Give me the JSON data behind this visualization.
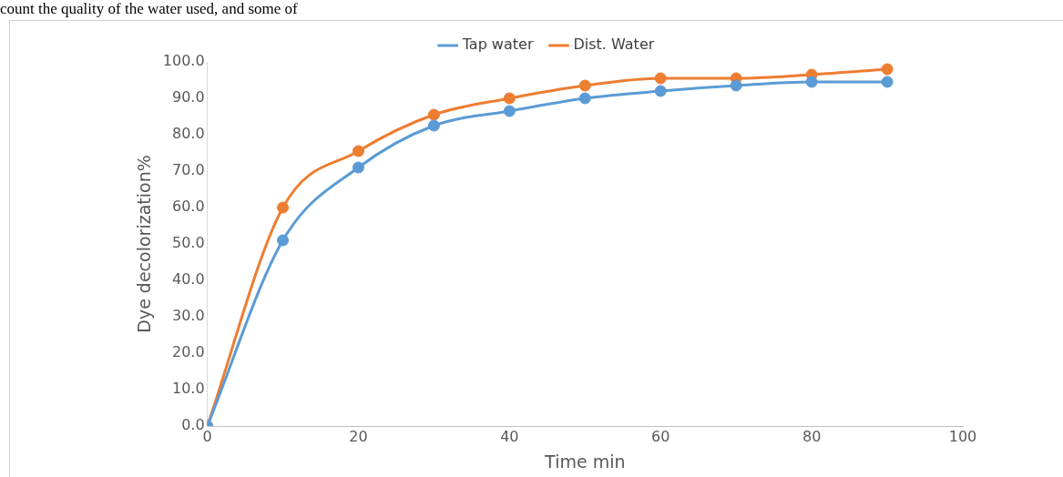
{
  "chart_data": {
    "type": "line",
    "xlabel": "Time min",
    "ylabel": "Dye decolorization%",
    "annotations": [
      "count the quality of the water used, and some of"
    ],
    "x": [
      0,
      10,
      20,
      30,
      40,
      50,
      60,
      70,
      80,
      90
    ],
    "series": [
      {
        "name": "Tap water",
        "color": "#5b9bd5",
        "values": [
          0,
          51.0,
          71.0,
          82.5,
          86.5,
          90.0,
          92.0,
          93.5,
          94.5,
          94.5
        ]
      },
      {
        "name": "Dist. Water",
        "color": "#ed7d31",
        "values": [
          0,
          60.0,
          75.5,
          85.5,
          90.0,
          93.5,
          95.5,
          95.5,
          96.5,
          98.0
        ]
      }
    ],
    "xlim": [
      0,
      100
    ],
    "xticks": [
      0,
      20,
      40,
      60,
      80,
      100
    ],
    "ylim": [
      0,
      100
    ],
    "yticks": [
      {
        "value": 0,
        "label": "0.0"
      },
      {
        "value": 10,
        "label": "10.0"
      },
      {
        "value": 20,
        "label": "20.0"
      },
      {
        "value": 30,
        "label": "30.0"
      },
      {
        "value": 40,
        "label": "40.0"
      },
      {
        "value": 50,
        "label": "50.0"
      },
      {
        "value": 60,
        "label": "60.0"
      },
      {
        "value": 70,
        "label": "70.0"
      },
      {
        "value": 80,
        "label": "80.0"
      },
      {
        "value": 90,
        "label": "90.0"
      },
      {
        "value": 100,
        "label": "100.0"
      }
    ],
    "grid": false,
    "legend": "top",
    "marker": "circle",
    "line_style": "solid"
  }
}
